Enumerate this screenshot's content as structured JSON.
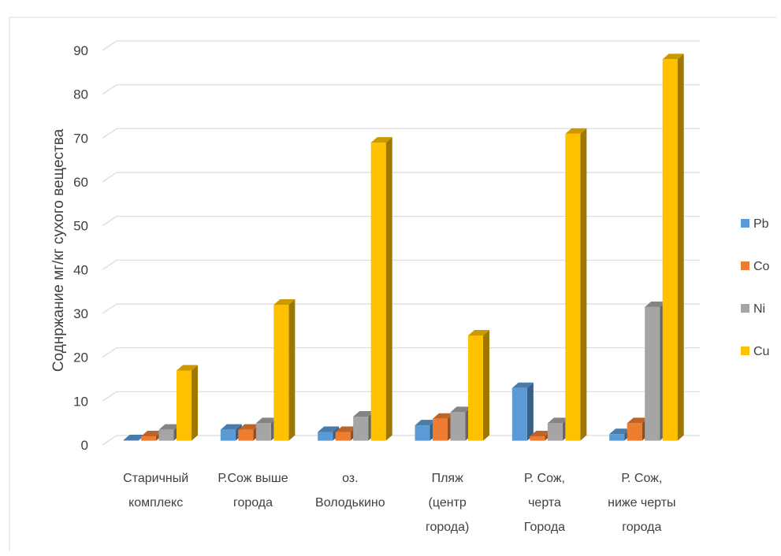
{
  "chart_data": {
    "type": "bar",
    "ylabel": "Соднржание мг/кг сухого вещества",
    "ylim": [
      0,
      90
    ],
    "yticks": [
      0,
      10,
      20,
      30,
      40,
      50,
      60,
      70,
      80,
      90
    ],
    "categories": [
      [
        "Старичный",
        "комплекс"
      ],
      [
        "Р.Сож выше",
        "города"
      ],
      [
        "оз.",
        "Володькино"
      ],
      [
        "Пляж",
        "(центр",
        "города)"
      ],
      [
        "Р. Сож,",
        "черта",
        "Города"
      ],
      [
        "Р. Сож,",
        "ниже черты",
        "города"
      ]
    ],
    "series": [
      {
        "name": "Pb",
        "color": "#5B9BD5",
        "values": [
          0.1,
          2.5,
          2.0,
          3.5,
          12.0,
          1.5
        ]
      },
      {
        "name": "Co",
        "color": "#ED7D31",
        "values": [
          1.0,
          2.5,
          2.0,
          5.0,
          1.0,
          4.0
        ]
      },
      {
        "name": "Ni",
        "color": "#A5A5A5",
        "values": [
          2.5,
          4.0,
          5.5,
          6.5,
          4.0,
          30.5
        ]
      },
      {
        "name": "Cu",
        "color": "#FFC000",
        "values": [
          16.0,
          31.0,
          68.0,
          24.0,
          70.0,
          87.0
        ]
      }
    ],
    "legend_position": "right",
    "grid": true
  }
}
